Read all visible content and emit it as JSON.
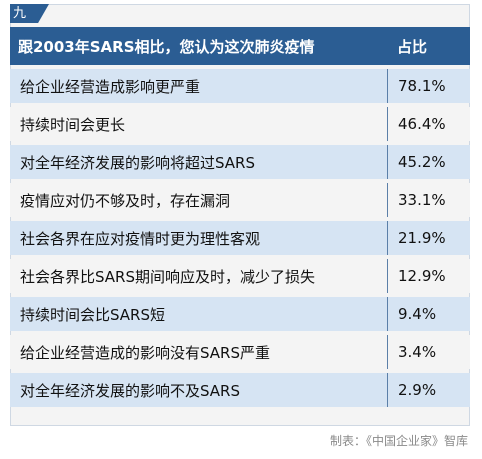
{
  "tag": "九",
  "chart_data": {
    "type": "table",
    "columns": [
      "跟2003年SARS相比，您认为这次肺炎疫情",
      "占比"
    ],
    "rows": [
      {
        "label": "给企业经营造成影响更严重",
        "value": "78.1%"
      },
      {
        "label": "持续时间会更长",
        "value": "46.4%"
      },
      {
        "label": "对全年经济发展的影响将超过SARS",
        "value": "45.2%"
      },
      {
        "label": "疫情应对仍不够及时，存在漏洞",
        "value": "33.1%"
      },
      {
        "label": "社会各界在应对疫情时更为理性客观",
        "value": "21.9%"
      },
      {
        "label": "社会各界比SARS期间响应及时，减少了损失",
        "value": "12.9%"
      },
      {
        "label": "持续时间会比SARS短",
        "value": "9.4%"
      },
      {
        "label": "给企业经营造成的影响没有SARS严重",
        "value": "3.4%"
      },
      {
        "label": "对全年经济发展的影响不及SARS",
        "value": "2.9%"
      }
    ],
    "percent_values": [
      78.1,
      46.4,
      45.2,
      33.1,
      21.9,
      12.9,
      9.4,
      3.4,
      2.9
    ]
  },
  "credit": "制表：《中国企业家》智库",
  "colors": {
    "header": "#2b5d93",
    "row_alt": "#d6e4f3",
    "row_plain": "#f4f4f4"
  }
}
